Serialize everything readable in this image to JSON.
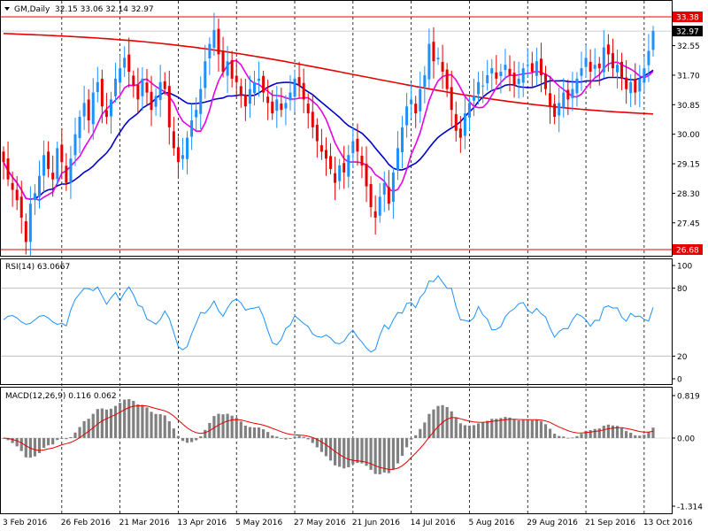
{
  "chart_data": [
    {
      "type": "candlestick",
      "panel": "price",
      "title": "GM,Daily",
      "ohlc_readout": "32.15 33.06 32.14 32.97",
      "y_ticks": [
        "32.55",
        "31.70",
        "30.85",
        "30.00",
        "29.15",
        "28.30",
        "27.45"
      ],
      "ylim": [
        26.68,
        33.38
      ],
      "levels": [
        {
          "name": "high",
          "label": "33.38",
          "value": 33.38,
          "color": "#e60000"
        },
        {
          "name": "last",
          "label": "32.97",
          "value": 32.97,
          "color": "#000000"
        },
        {
          "name": "low",
          "label": "26.68",
          "value": 26.68,
          "color": "#e60000"
        }
      ],
      "x_labels": [
        "3 Feb 2016",
        "26 Feb 2016",
        "21 Mar 2016",
        "13 Apr 2016",
        "5 May 2016",
        "27 May 2016",
        "21 Jun 2016",
        "14 Jul 2016",
        "5 Aug 2016",
        "29 Aug 2016",
        "21 Sep 2016",
        "13 Oct 2016"
      ],
      "close": [
        29.2,
        28.7,
        28.4,
        28.1,
        27.6,
        26.9,
        28.0,
        28.3,
        28.8,
        29.4,
        29.0,
        28.7,
        29.6,
        29.2,
        28.6,
        29.3,
        30.0,
        30.5,
        30.9,
        30.4,
        31.2,
        31.5,
        30.8,
        30.5,
        31.0,
        31.6,
        31.9,
        32.2,
        31.8,
        31.4,
        31.0,
        31.6,
        31.2,
        30.7,
        31.1,
        31.5,
        31.3,
        30.2,
        29.6,
        29.2,
        29.4,
        29.9,
        30.4,
        30.7,
        31.3,
        32.1,
        32.6,
        33.0,
        32.3,
        31.8,
        32.1,
        31.6,
        31.5,
        31.1,
        30.8,
        31.3,
        31.5,
        31.6,
        31.2,
        30.9,
        30.6,
        31.0,
        30.7,
        30.9,
        31.2,
        31.6,
        31.4,
        31.0,
        30.6,
        30.2,
        29.8,
        29.5,
        29.3,
        29.0,
        28.6,
        29.1,
        28.9,
        29.4,
        29.8,
        29.5,
        29.1,
        28.5,
        27.9,
        27.6,
        28.2,
        28.6,
        28.0,
        28.9,
        29.6,
        30.2,
        30.8,
        31.0,
        30.6,
        31.3,
        31.7,
        32.6,
        32.1,
        32.2,
        31.8,
        31.3,
        30.7,
        30.1,
        29.9,
        30.6,
        30.9,
        31.1,
        31.5,
        31.4,
        31.7,
        31.9,
        31.6,
        31.8,
        32.0,
        31.7,
        31.4,
        31.6,
        31.9,
        32.0,
        31.8,
        32.1,
        31.7,
        31.3,
        30.8,
        30.5,
        30.9,
        31.2,
        31.0,
        31.3,
        31.6,
        31.9,
        32.2,
        31.8,
        32.0,
        31.9,
        32.5,
        32.3,
        31.9,
        32.0,
        31.6,
        31.3,
        31.5,
        31.2,
        31.6,
        31.9,
        32.4,
        32.97
      ]
    },
    {
      "type": "line",
      "panel": "oscillator",
      "title": "RSI(14) 63.0667",
      "y_ticks": [
        "100",
        "80",
        "20",
        "0"
      ],
      "ylim": [
        0,
        100
      ],
      "levels": [
        80,
        20
      ]
    },
    {
      "type": "bar",
      "panel": "oscillator",
      "title": "MACD(12,26,9) 0.116 0.062",
      "y_ticks": [
        "0.819",
        "0.00",
        "-1.314"
      ],
      "ylim": [
        -1.314,
        0.819
      ]
    }
  ],
  "colors": {
    "bull": "#1e90ff",
    "bear": "#e60000",
    "ma_fast": "#e600e6",
    "ma_mid": "#0000c8",
    "ma_slow": "#e60000",
    "rsi": "#1e90ff",
    "macd_hist": "#808080",
    "macd_signal": "#e60000"
  }
}
